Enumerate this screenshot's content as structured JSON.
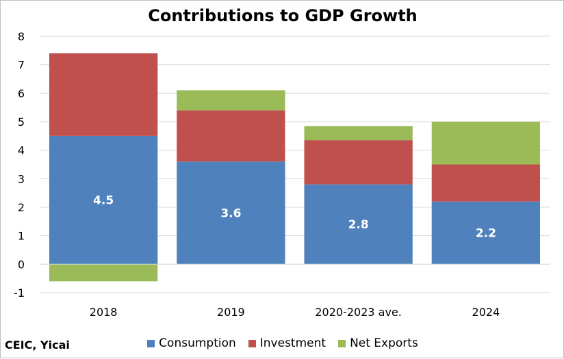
{
  "chart_data": {
    "type": "bar",
    "stacked": true,
    "title": "Contributions to GDP Growth",
    "source": "CEIC, Yicai",
    "xlabel": "",
    "ylabel": "",
    "categories": [
      "2018",
      "2019",
      "2020-2023 ave.",
      "2024"
    ],
    "series": [
      {
        "name": "Consumption",
        "color": "#4F81BD",
        "values": [
          4.5,
          3.6,
          2.8,
          2.2
        ],
        "data_labels": [
          "4.5",
          "3.6",
          "2.8",
          "2.2"
        ]
      },
      {
        "name": "Investment",
        "color": "#C0504D",
        "values": [
          2.9,
          1.8,
          1.55,
          1.3
        ]
      },
      {
        "name": "Net Exports",
        "color": "#9BBB59",
        "values": [
          -0.6,
          0.7,
          0.5,
          1.5
        ]
      }
    ],
    "ylim": [
      -1,
      8
    ],
    "yticks": [
      "-1",
      "0",
      "1",
      "2",
      "3",
      "4",
      "5",
      "6",
      "7",
      "8"
    ],
    "grid": true,
    "legend_position": "bottom"
  }
}
